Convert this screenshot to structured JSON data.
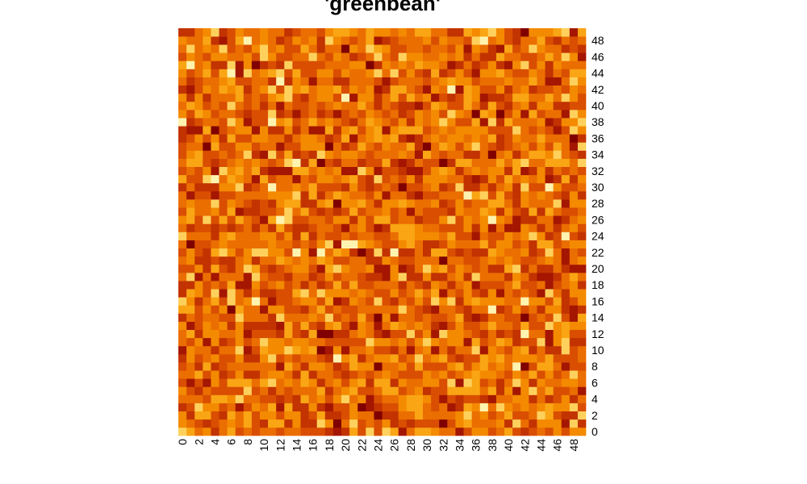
{
  "chart_data": {
    "type": "heatmap",
    "title": "'greenbean'",
    "xlabel": "",
    "ylabel": "",
    "x_range": [
      0,
      49
    ],
    "y_range": [
      0,
      49
    ],
    "x_tick_labels": [
      "0",
      "2",
      "4",
      "6",
      "8",
      "10",
      "12",
      "14",
      "16",
      "18",
      "20",
      "22",
      "24",
      "26",
      "28",
      "30",
      "32",
      "34",
      "36",
      "38",
      "40",
      "42",
      "44",
      "46",
      "48"
    ],
    "y_tick_labels": [
      "0",
      "2",
      "4",
      "6",
      "8",
      "10",
      "12",
      "14",
      "16",
      "18",
      "20",
      "22",
      "24",
      "26",
      "28",
      "30",
      "32",
      "34",
      "36",
      "38",
      "40",
      "42",
      "44",
      "46",
      "48"
    ],
    "x_axis_position": "bottom",
    "y_axis_position": "right",
    "x_tick_rotation": "vertical",
    "grid": false,
    "legend": "none",
    "colormap": "heat (white-yellow to dark red)",
    "palette": [
      "#FFF3B0",
      "#FFD15C",
      "#FAA514",
      "#F48A00",
      "#EB6E00",
      "#D94E00",
      "#C23300",
      "#A41600",
      "#800000"
    ],
    "cell_values_note_free": true,
    "seed": 20210519
  }
}
